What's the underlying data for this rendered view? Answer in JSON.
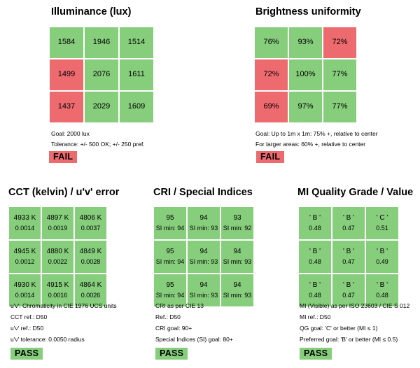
{
  "illuminance": {
    "title": "Illuminance (lux)",
    "cells": [
      {
        "value": "1584",
        "status": "green"
      },
      {
        "value": "1946",
        "status": "green"
      },
      {
        "value": "1514",
        "status": "green"
      },
      {
        "value": "1499",
        "status": "red"
      },
      {
        "value": "2076",
        "status": "green"
      },
      {
        "value": "1611",
        "status": "green"
      },
      {
        "value": "1437",
        "status": "red"
      },
      {
        "value": "2029",
        "status": "green"
      },
      {
        "value": "1609",
        "status": "green"
      }
    ],
    "notes": [
      "Goal: 2000 lux",
      "Tolerance: +/- 500 OK; +/- 250 pref."
    ],
    "result": "FAIL"
  },
  "uniformity": {
    "title": "Brightness uniformity",
    "cells": [
      {
        "value": "76%",
        "status": "green"
      },
      {
        "value": "93%",
        "status": "green"
      },
      {
        "value": "72%",
        "status": "red"
      },
      {
        "value": "72%",
        "status": "red"
      },
      {
        "value": "100%",
        "status": "green"
      },
      {
        "value": "77%",
        "status": "green"
      },
      {
        "value": "69%",
        "status": "red"
      },
      {
        "value": "97%",
        "status": "green"
      },
      {
        "value": "77%",
        "status": "green"
      }
    ],
    "notes": [
      "Goal: Up to 1m x 1m: 75% +, relative to center",
      "For larger areas: 60% +, relative to center"
    ],
    "result": "FAIL"
  },
  "cct": {
    "title": "CCT (kelvin) / u'v' error",
    "cells": [
      {
        "top": "4933 K",
        "bottom": "0.0014"
      },
      {
        "top": "4897 K",
        "bottom": "0.0019"
      },
      {
        "top": "4806 K",
        "bottom": "0.0037"
      },
      {
        "top": "4945 K",
        "bottom": "0.0012"
      },
      {
        "top": "4880 K",
        "bottom": "0.0022"
      },
      {
        "top": "4849 K",
        "bottom": "0.0028"
      },
      {
        "top": "4930 K",
        "bottom": "0.0014"
      },
      {
        "top": "4915 K",
        "bottom": "0.0016"
      },
      {
        "top": "4864 K",
        "bottom": "0.0026"
      }
    ],
    "notes": [
      "u'v': Chromaticity in CIE 1976 UCS units",
      "CCT ref.: D50",
      "u'v' ref.: D50",
      "u'v' tolerance: 0.0050 radius"
    ],
    "result": "PASS"
  },
  "cri": {
    "title": "CRI / Special Indices",
    "cells": [
      {
        "top": "95",
        "bottom": "SI min: 94"
      },
      {
        "top": "94",
        "bottom": "SI min: 93"
      },
      {
        "top": "93",
        "bottom": "SI min: 92"
      },
      {
        "top": "95",
        "bottom": "SI min: 94"
      },
      {
        "top": "94",
        "bottom": "SI min: 93"
      },
      {
        "top": "94",
        "bottom": "SI min: 93"
      },
      {
        "top": "95",
        "bottom": "SI min: 94"
      },
      {
        "top": "94",
        "bottom": "SI min: 93"
      },
      {
        "top": "94",
        "bottom": "SI min: 93"
      }
    ],
    "notes": [
      "CRI as per CIE 13",
      "Ref.: D50",
      "CRI goal: 90+",
      "Special Indices (SI) goal: 80+"
    ],
    "result": "PASS"
  },
  "mi": {
    "title": "MI Quality Grade / Value",
    "cells": [
      {
        "top": "' B '",
        "bottom": "0.48"
      },
      {
        "top": "' B '",
        "bottom": "0.47"
      },
      {
        "top": "' C '",
        "bottom": "0.51"
      },
      {
        "top": "' B '",
        "bottom": "0.48"
      },
      {
        "top": "' B '",
        "bottom": "0.47"
      },
      {
        "top": "' B '",
        "bottom": "0.49"
      },
      {
        "top": "' B '",
        "bottom": "0.48"
      },
      {
        "top": "' B '",
        "bottom": "0.47"
      },
      {
        "top": "' B '",
        "bottom": "0.48"
      }
    ],
    "notes": [
      "MI (Visible) as per ISO 23603 / CIE S 012",
      "MI ref.: D50",
      "QG goal: 'C' or better (MI ≤ 1)",
      "Preferred goal: 'B' or better (MI ≤ 0.5)"
    ],
    "result": "PASS"
  },
  "colors": {
    "green": "#86cd7c",
    "red": "#ed6a6f"
  }
}
